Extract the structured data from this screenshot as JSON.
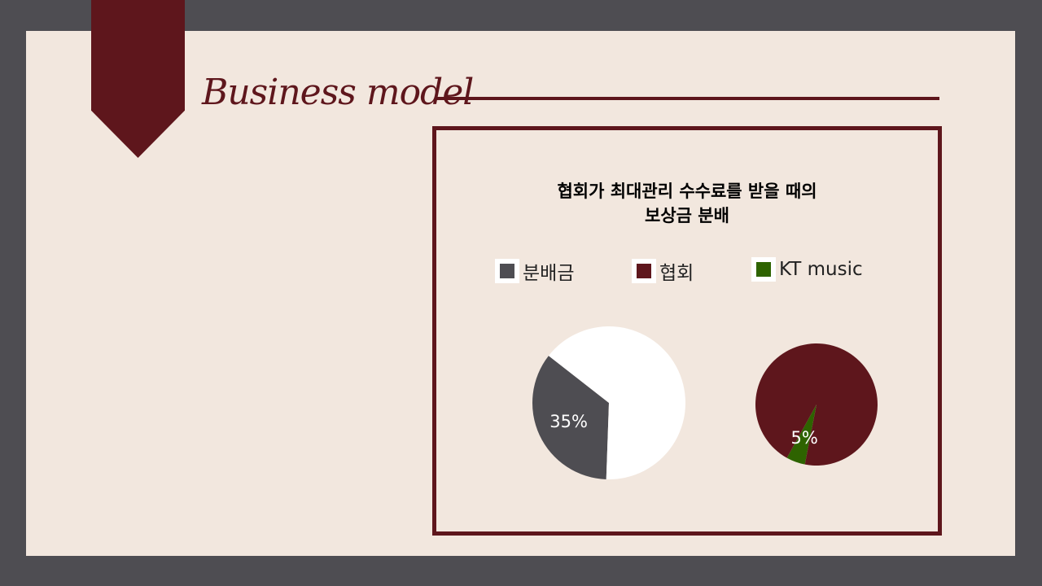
{
  "slide": {
    "title": "Business model"
  },
  "colors": {
    "background": "#4e4d52",
    "slide": "#f2e7de",
    "accent": "#5e161c",
    "kt_music": "#2e6300",
    "pie_rest": "#ffffff"
  },
  "chart_data": {
    "type": "pie",
    "title": "협회가 최대관리 수수료를 받을 때의",
    "subtitle": "보상금 분배",
    "legend": [
      {
        "name": "분배금",
        "color": "#4e4d52"
      },
      {
        "name": "협회",
        "color": "#5e161c"
      },
      {
        "name": "KT music",
        "color": "#2e6300"
      }
    ],
    "legend_position": "top",
    "pies": [
      {
        "slices": [
          {
            "name": "분배금",
            "value": 35,
            "label": "35%",
            "color": "#4e4d52"
          },
          {
            "name": "",
            "value": 65,
            "label": "",
            "color": "#ffffff"
          }
        ]
      },
      {
        "slices": [
          {
            "name": "KT music",
            "value": 5,
            "label": "5%",
            "color": "#2e6300"
          },
          {
            "name": "협회",
            "value": 95,
            "label": "",
            "color": "#5e161c"
          }
        ]
      }
    ]
  }
}
